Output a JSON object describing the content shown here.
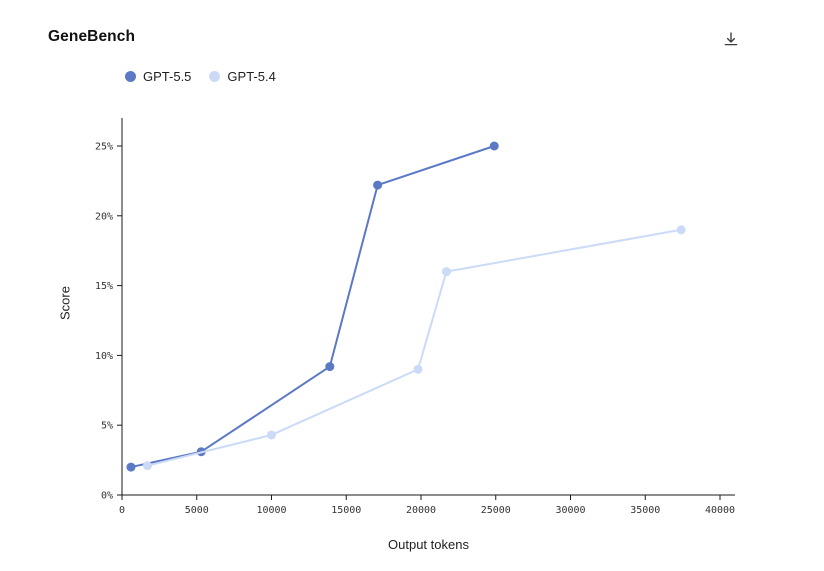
{
  "header": {
    "title": "GeneBench",
    "icons": {
      "download": "download-icon"
    }
  },
  "chart_data": {
    "type": "line",
    "title": "GeneBench",
    "xlabel": "Output tokens",
    "ylabel": "Score",
    "xlim": [
      0,
      40000
    ],
    "ylim": [
      0,
      25
    ],
    "x_ticks": [
      0,
      5000,
      10000,
      15000,
      20000,
      25000,
      30000,
      35000,
      40000
    ],
    "y_ticks": [
      0,
      5,
      10,
      15,
      20,
      25
    ],
    "y_tick_suffix": "%",
    "grid": false,
    "legend_position": "top-left",
    "axis_color": "#1a1a1a",
    "tick_label_color": "#333333",
    "series": [
      {
        "name": "GPT-5.5",
        "color": "#5b79c4",
        "points": [
          [
            600,
            2.0
          ],
          [
            5300,
            3.1
          ],
          [
            13900,
            9.2
          ],
          [
            17100,
            22.2
          ],
          [
            24900,
            25.0
          ]
        ]
      },
      {
        "name": "GPT-5.4",
        "color": "#cbdbf7",
        "points": [
          [
            1700,
            2.1
          ],
          [
            10000,
            4.3
          ],
          [
            19800,
            9.0
          ],
          [
            21700,
            16.0
          ],
          [
            37400,
            19.0
          ]
        ]
      }
    ]
  }
}
